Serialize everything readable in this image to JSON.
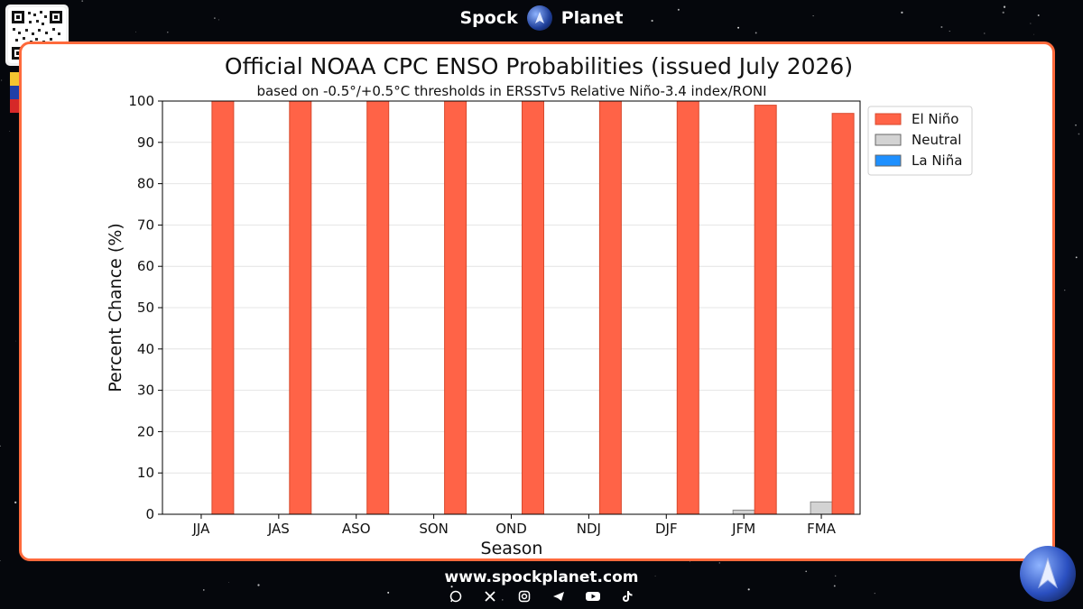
{
  "brand": {
    "left": "Spock",
    "right": "Planet"
  },
  "footer": {
    "url": "www.spockplanet.com",
    "socials": [
      "whatsapp-icon",
      "x-icon",
      "instagram-icon",
      "telegram-icon",
      "youtube-icon",
      "tiktok-icon"
    ]
  },
  "colors": {
    "el_nino": "#ff6347",
    "neutral": "#d3d3d3",
    "la_nina": "#1e90ff",
    "panel_border": "#ff6a3c"
  },
  "chart_data": {
    "type": "bar",
    "title": "Official NOAA CPC ENSO Probabilities (issued July 2026)",
    "subtitle": "based on -0.5°/+0.5°C thresholds in ERSSTv5 Relative Niño-3.4 index/RONI",
    "xlabel": "Season",
    "ylabel": "Percent Chance (%)",
    "ylim": [
      0,
      100
    ],
    "yticks": [
      0,
      10,
      20,
      30,
      40,
      50,
      60,
      70,
      80,
      90,
      100
    ],
    "grid": "horizontal",
    "legend_position": "outside-top-right",
    "categories": [
      "JJA",
      "JAS",
      "ASO",
      "SON",
      "OND",
      "NDJ",
      "DJF",
      "JFM",
      "FMA"
    ],
    "series": [
      {
        "name": "La Niña",
        "color": "#1e90ff",
        "values": [
          0,
          0,
          0,
          0,
          0,
          0,
          0,
          0,
          0
        ]
      },
      {
        "name": "Neutral",
        "color": "#d3d3d3",
        "values": [
          0,
          0,
          0,
          0,
          0,
          0,
          0,
          1,
          3
        ]
      },
      {
        "name": "El Niño",
        "color": "#ff6347",
        "values": [
          100,
          100,
          100,
          100,
          100,
          100,
          100,
          99,
          97
        ]
      }
    ],
    "legend_order": [
      "El Niño",
      "Neutral",
      "La Niña"
    ]
  }
}
